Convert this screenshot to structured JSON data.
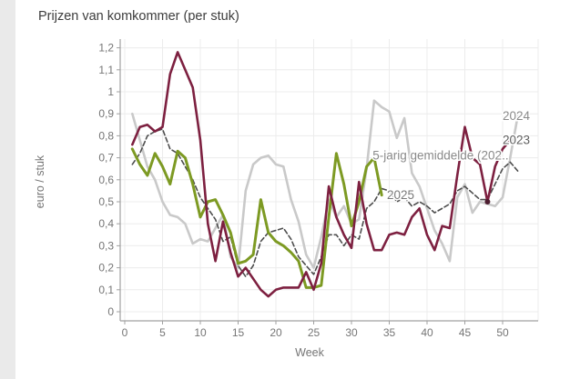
{
  "chart_data": {
    "type": "line",
    "title": "Prijzen van komkommer (per stuk)",
    "xlabel": "Week",
    "ylabel": "euro / stuk",
    "xlim": [
      0,
      54.7
    ],
    "ylim": [
      0,
      1.2
    ],
    "grid": true,
    "legend_position": "end-of-line-labels",
    "x_ticks": [
      {
        "value": 0,
        "label": "0"
      },
      {
        "value": 5,
        "label": "5"
      },
      {
        "value": 10,
        "label": "10"
      },
      {
        "value": 15,
        "label": "15"
      },
      {
        "value": 20,
        "label": "20"
      },
      {
        "value": 25,
        "label": "25"
      },
      {
        "value": 30,
        "label": "30"
      },
      {
        "value": 35,
        "label": "35"
      },
      {
        "value": 40,
        "label": "40"
      },
      {
        "value": 45,
        "label": "45"
      },
      {
        "value": 50,
        "label": "50"
      }
    ],
    "y_ticks": [
      {
        "value": 0,
        "label": "0"
      },
      {
        "value": 0.1,
        "label": "0,1"
      },
      {
        "value": 0.2,
        "label": "0,2"
      },
      {
        "value": 0.3,
        "label": "0,3"
      },
      {
        "value": 0.4,
        "label": "0,4"
      },
      {
        "value": 0.5,
        "label": "0,5"
      },
      {
        "value": 0.6,
        "label": "0,6"
      },
      {
        "value": 0.7,
        "label": "0,7"
      },
      {
        "value": 0.8,
        "label": "0,8"
      },
      {
        "value": 0.9,
        "label": "0,9"
      },
      {
        "value": 1.0,
        "label": "1"
      },
      {
        "value": 1.1,
        "label": "1,1"
      },
      {
        "value": 1.2,
        "label": "1,2"
      }
    ],
    "series": [
      {
        "name": "2024",
        "color": "#c9c9c9",
        "dash": "solid",
        "width": 2.6,
        "start_week": 1,
        "values": [
          0.9,
          0.78,
          0.66,
          0.6,
          0.5,
          0.44,
          0.43,
          0.4,
          0.31,
          0.33,
          0.32,
          0.38,
          0.44,
          0.25,
          0.2,
          0.55,
          0.67,
          0.7,
          0.71,
          0.67,
          0.66,
          0.51,
          0.41,
          0.26,
          0.2,
          0.34,
          0.51,
          0.43,
          0.48,
          0.4,
          0.42,
          0.65,
          0.96,
          0.93,
          0.91,
          0.79,
          0.88,
          0.63,
          0.57,
          0.47,
          0.37,
          0.31,
          0.23,
          0.52,
          0.58,
          0.45,
          0.5,
          0.49,
          0.48,
          0.52,
          0.7,
          0.89
        ]
      },
      {
        "name": "5-jarig gemiddelde (202..",
        "color": "#4d4d4d",
        "dash": "dashed",
        "width": 1.6,
        "start_week": 1,
        "values": [
          0.67,
          0.72,
          0.8,
          0.82,
          0.83,
          0.74,
          0.72,
          0.66,
          0.6,
          0.52,
          0.47,
          0.42,
          0.32,
          0.34,
          0.21,
          0.16,
          0.21,
          0.32,
          0.36,
          0.37,
          0.38,
          0.33,
          0.25,
          0.21,
          0.17,
          0.25,
          0.35,
          0.35,
          0.3,
          0.35,
          0.33,
          0.47,
          0.5,
          0.56,
          0.55,
          0.5,
          0.52,
          0.48,
          0.5,
          0.48,
          0.45,
          0.47,
          0.49,
          0.55,
          0.57,
          0.54,
          0.51,
          0.51,
          0.58,
          0.65,
          0.68,
          0.64
        ]
      },
      {
        "name": "2025",
        "color": "#7d9a23",
        "dash": "solid",
        "width": 3,
        "start_week": 1,
        "values": [
          0.74,
          0.67,
          0.62,
          0.72,
          0.66,
          0.58,
          0.73,
          0.7,
          0.58,
          0.43,
          0.5,
          0.51,
          0.44,
          0.36,
          0.22,
          0.23,
          0.26,
          0.51,
          0.36,
          0.32,
          0.3,
          0.27,
          0.23,
          0.11,
          0.11,
          0.12,
          0.43,
          0.72,
          0.58,
          0.39,
          0.5,
          0.66,
          0.7,
          0.53
        ]
      },
      {
        "name": "2023",
        "color": "#7d2040",
        "dash": "solid",
        "width": 2.6,
        "start_week": 1,
        "values": [
          0.76,
          0.84,
          0.85,
          0.82,
          0.84,
          1.08,
          1.18,
          1.1,
          1.02,
          0.78,
          0.4,
          0.23,
          0.41,
          0.27,
          0.16,
          0.2,
          0.15,
          0.1,
          0.07,
          0.1,
          0.11,
          0.11,
          0.11,
          0.18,
          0.1,
          0.22,
          0.57,
          0.43,
          0.35,
          0.29,
          0.59,
          0.4,
          0.28,
          0.28,
          0.35,
          0.36,
          0.35,
          0.43,
          0.47,
          0.35,
          0.28,
          0.39,
          0.38,
          0.62,
          0.84,
          0.7,
          0.67,
          0.5,
          0.66,
          0.74,
          0.78
        ],
        "marker": {
          "week": 48,
          "value": 0.5,
          "color": "#4d1d30",
          "radius": 3
        }
      }
    ],
    "end_labels": [
      {
        "text": "2024",
        "week": 50.0,
        "value": 0.89,
        "color": "#8a8a8a"
      },
      {
        "text": "2023",
        "week": 50.0,
        "value": 0.78,
        "color": "#5f5f5f"
      },
      {
        "text": "5-jarig gemiddelde (202..",
        "week": 32.8,
        "value": 0.71,
        "color": "#8a8a8a"
      },
      {
        "text": "2025",
        "week": 34.7,
        "value": 0.53,
        "color": "#7a7a7a"
      }
    ],
    "colors": {
      "grid": "#ececec",
      "axis": "#a0a0a0",
      "tick_label": "#757575",
      "title": "#3c3c3c",
      "background": "#ffffff",
      "page_strip": "#eaeaea"
    }
  }
}
